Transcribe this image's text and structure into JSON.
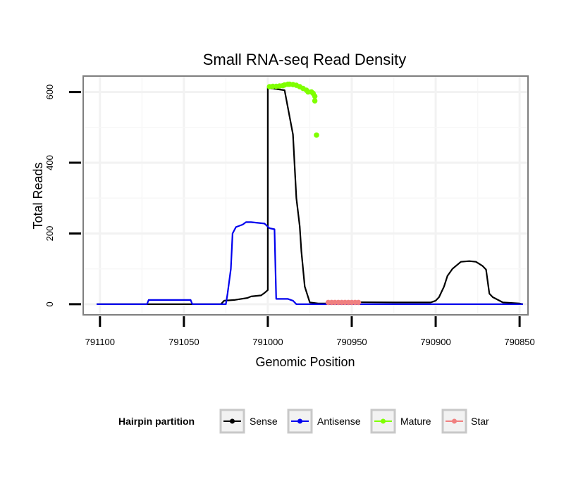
{
  "chart_data": {
    "type": "line",
    "title": "Small RNA-seq Read Density",
    "xlabel": "Genomic Position",
    "ylabel": "Total Reads",
    "xlim": [
      791110,
      790845
    ],
    "ylim": [
      -30,
      645
    ],
    "x_reversed": true,
    "grid": true,
    "x_ticks": [
      791100,
      791050,
      791000,
      790950,
      790900,
      790850
    ],
    "x_tick_labels": [
      "791100",
      "791050",
      "791000",
      "790950",
      "790900",
      "790850"
    ],
    "y_ticks": [
      0,
      200,
      400,
      600
    ],
    "y_tick_labels": [
      "0",
      "200",
      "400",
      "600"
    ],
    "legend": {
      "title": "Hairpin partition",
      "position": "bottom",
      "entries": [
        {
          "label": "Sense",
          "color": "#000000"
        },
        {
          "label": "Antisense",
          "color": "#0000ee"
        },
        {
          "label": "Mature",
          "color": "#7fff00"
        },
        {
          "label": "Star",
          "color": "#f08080"
        }
      ]
    },
    "series": [
      {
        "name": "Sense",
        "color": "#000000",
        "style": "line",
        "x": [
          791102,
          791028,
          791026,
          791020,
          791012,
          791010,
          791004,
          791002,
          791000,
          791000,
          790990,
          790985,
          790983,
          790981,
          790980,
          790978,
          790975,
          790970,
          790960,
          790955,
          790925,
          790903,
          790900,
          790898,
          790895,
          790893,
          790890,
          790885,
          790880,
          790876,
          790872,
          790870,
          790868,
          790866,
          790864,
          790860,
          790850,
          790848
        ],
        "y": [
          0,
          0,
          10,
          12,
          18,
          22,
          25,
          32,
          40,
          612,
          605,
          480,
          300,
          220,
          150,
          50,
          5,
          2,
          2,
          6,
          5,
          5,
          10,
          20,
          50,
          80,
          100,
          120,
          122,
          120,
          108,
          98,
          30,
          20,
          15,
          5,
          2,
          0
        ]
      },
      {
        "name": "Antisense",
        "color": "#0000ee",
        "style": "line",
        "x": [
          791102,
          791072,
          791071,
          791060,
          791046,
          791045,
          791025,
          791024,
          791022,
          791021,
          791019,
          791015,
          791013,
          791010,
          791002,
          790999,
          790996,
          790995,
          790988,
          790985,
          790983,
          790848
        ],
        "y": [
          0,
          0,
          12,
          12,
          12,
          0,
          0,
          30,
          100,
          200,
          218,
          225,
          232,
          232,
          228,
          215,
          212,
          15,
          15,
          10,
          0,
          0
        ]
      },
      {
        "name": "Mature",
        "color": "#7fff00",
        "style": "points",
        "x": [
          790999,
          790997,
          790995,
          790993,
          790991,
          790990,
          790988,
          790987,
          790985,
          790983,
          790981,
          790979,
          790977,
          790976,
          790974,
          790973,
          790972,
          790972,
          790971
        ],
        "y": [
          615,
          616,
          616,
          617,
          618,
          620,
          622,
          622,
          621,
          619,
          615,
          610,
          605,
          600,
          600,
          596,
          588,
          575,
          478
        ]
      },
      {
        "name": "Star",
        "color": "#f08080",
        "style": "points",
        "x": [
          790964,
          790962,
          790960,
          790958,
          790956,
          790954,
          790952,
          790950,
          790948,
          790946
        ],
        "y": [
          5,
          5,
          5,
          5,
          5,
          5,
          5,
          5,
          5,
          5
        ]
      }
    ]
  }
}
